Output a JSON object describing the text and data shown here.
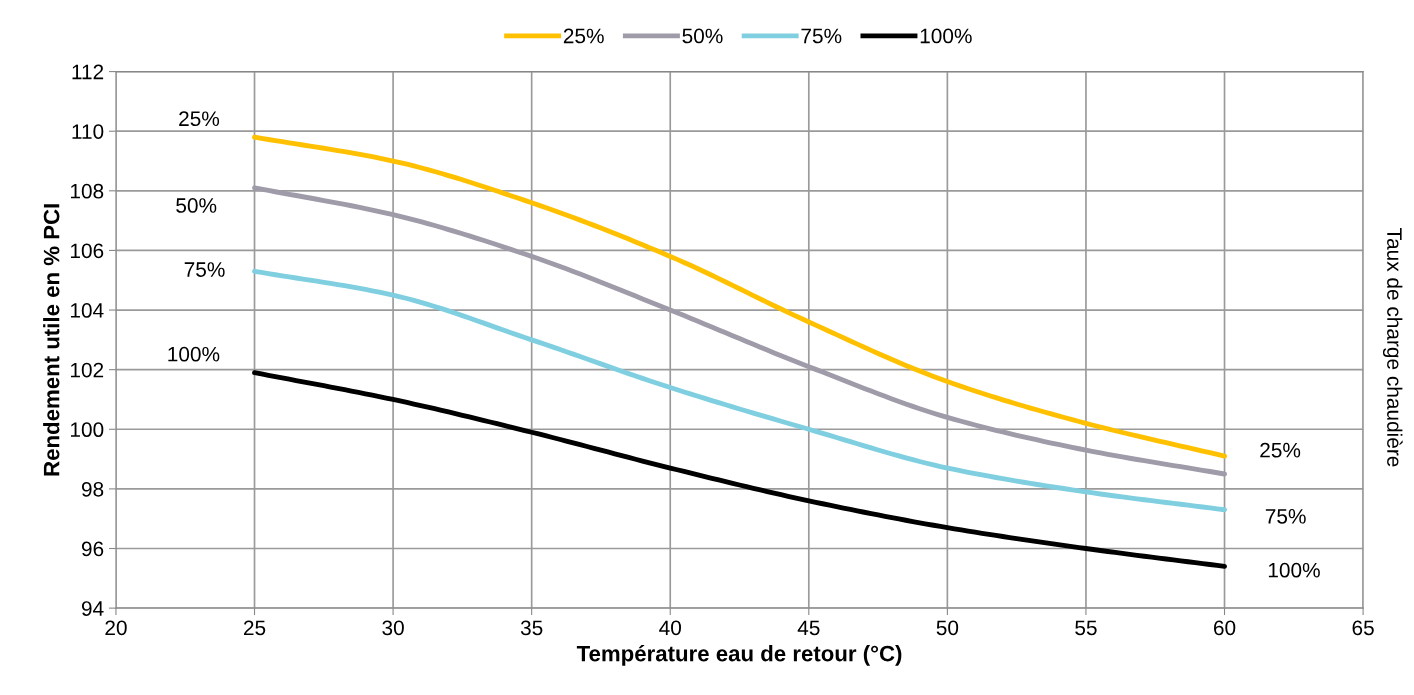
{
  "chart_data": {
    "type": "line",
    "xlabel": "Température eau de retour (°C)",
    "ylabel": "Rendement utile en % PCI",
    "x": [
      25,
      30,
      35,
      40,
      45,
      50,
      55,
      60
    ],
    "series": [
      {
        "name": "25%",
        "color": "#ffc000",
        "values": [
          109.8,
          109.0,
          107.6,
          105.8,
          103.6,
          101.6,
          100.2,
          99.1
        ]
      },
      {
        "name": "50%",
        "color": "#a09ba8",
        "values": [
          108.1,
          107.2,
          105.8,
          104.0,
          102.1,
          100.4,
          99.3,
          98.5
        ]
      },
      {
        "name": "75%",
        "color": "#7fcfe0",
        "values": [
          105.3,
          104.5,
          103.0,
          101.4,
          100.0,
          98.7,
          97.9,
          97.3
        ]
      },
      {
        "name": "100%",
        "color": "#000000",
        "values": [
          101.9,
          101.0,
          99.9,
          98.7,
          97.6,
          96.7,
          96.0,
          95.4
        ]
      }
    ],
    "xlim": [
      20,
      65
    ],
    "xticks": [
      20,
      25,
      30,
      35,
      40,
      45,
      50,
      55,
      60,
      65
    ],
    "ylim": [
      94,
      112
    ],
    "yticks": [
      94,
      96,
      98,
      100,
      102,
      104,
      106,
      108,
      110,
      112
    ],
    "grid": true,
    "legend": "top",
    "marker": "none",
    "line_style": "solid",
    "annotations": [
      "25%",
      "50%",
      "75%",
      "100%",
      "25%",
      "75%",
      "100%",
      "Taux de charge chaudière"
    ]
  }
}
